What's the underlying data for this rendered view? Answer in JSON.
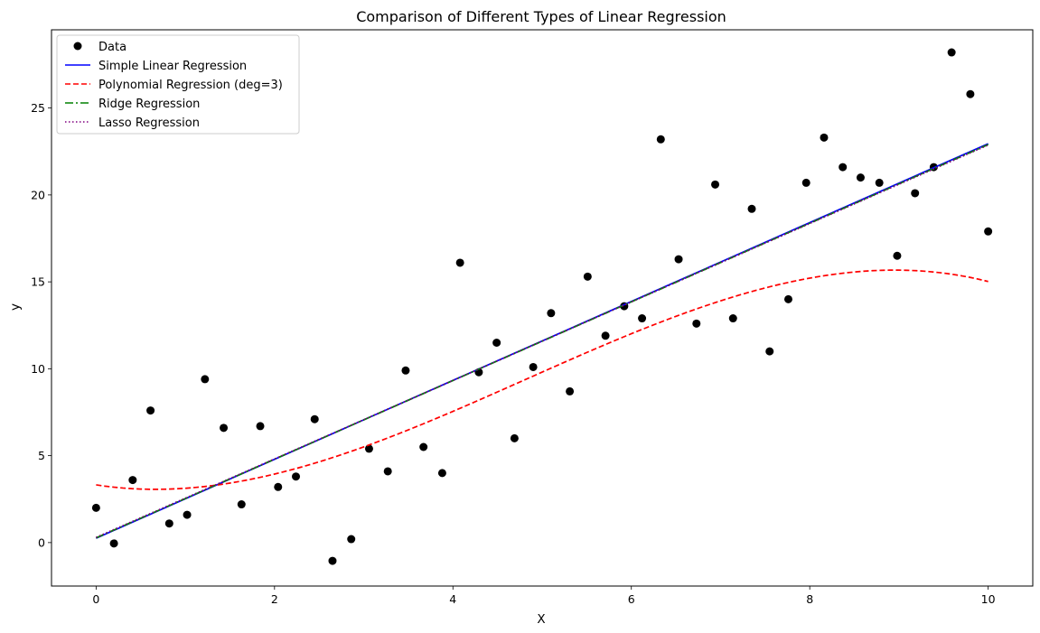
{
  "chart_data": {
    "type": "scatter",
    "title": "Comparison of Different Types of Linear Regression",
    "xlabel": "X",
    "ylabel": "y",
    "xlim": [
      -0.5,
      10.5
    ],
    "ylim": [
      -2.5,
      29.5
    ],
    "xticks": [
      0,
      2,
      4,
      6,
      8,
      10
    ],
    "yticks": [
      0,
      5,
      10,
      15,
      20,
      25
    ],
    "grid": false,
    "legend_position": "top-left",
    "legend": [
      "Data",
      "Simple Linear Regression",
      "Polynomial Regression (deg=3)",
      "Ridge Regression",
      "Lasso Regression"
    ],
    "colors": {
      "data": "#000000",
      "simple": "#0000ff",
      "poly": "#ff0000",
      "ridge": "#008000",
      "lasso": "#800080"
    },
    "scatter": {
      "name": "Data",
      "x": [
        0.0,
        0.2,
        0.41,
        0.61,
        0.82,
        1.02,
        1.22,
        1.43,
        1.63,
        1.84,
        2.04,
        2.24,
        2.45,
        2.65,
        2.86,
        3.06,
        3.27,
        3.47,
        3.67,
        3.88,
        4.08,
        4.29,
        4.49,
        4.69,
        4.9,
        5.1,
        5.31,
        5.51,
        5.71,
        5.92,
        6.12,
        6.33,
        6.53,
        6.73,
        6.94,
        7.14,
        7.35,
        7.55,
        7.76,
        7.96,
        8.16,
        8.37,
        8.57,
        8.78,
        8.98,
        9.18,
        9.39,
        9.59,
        9.8,
        10.0
      ],
      "y": [
        2.0,
        -0.05,
        3.6,
        7.6,
        1.1,
        1.6,
        9.4,
        6.6,
        2.2,
        6.7,
        3.2,
        3.8,
        7.1,
        -1.05,
        0.2,
        5.4,
        4.1,
        9.9,
        5.5,
        4.0,
        16.1,
        9.8,
        11.5,
        6.0,
        10.1,
        13.2,
        8.7,
        15.3,
        11.9,
        13.6,
        12.9,
        23.2,
        16.3,
        12.6,
        20.6,
        12.9,
        19.2,
        11.0,
        14.0,
        20.7,
        23.3,
        21.6,
        21.0,
        20.7,
        16.5,
        20.1,
        21.6,
        28.2,
        25.8,
        17.9
      ]
    },
    "series": [
      {
        "name": "Simple Linear Regression",
        "style": "solid",
        "x": [
          0,
          10
        ],
        "y": [
          0.25,
          22.95
        ]
      },
      {
        "name": "Polynomial Regression (deg=3)",
        "style": "dashed",
        "coefficients": [
          3.32,
          -0.79,
          0.639,
          -0.0443
        ]
      },
      {
        "name": "Ridge Regression",
        "style": "dashdot",
        "x": [
          0,
          10
        ],
        "y": [
          0.27,
          22.9
        ]
      },
      {
        "name": "Lasso Regression",
        "style": "dotted",
        "x": [
          0,
          10
        ],
        "y": [
          0.3,
          22.87
        ]
      }
    ]
  }
}
